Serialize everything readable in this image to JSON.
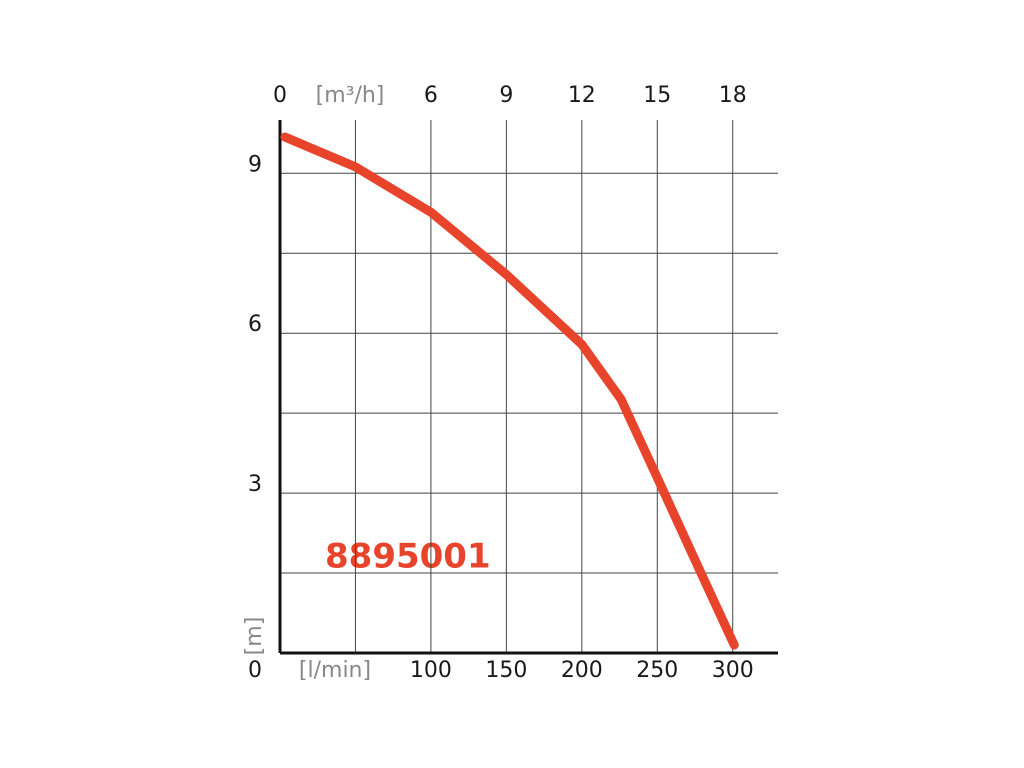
{
  "chart_data": {
    "type": "line",
    "annotation": "8895001",
    "xlabel": "[l/min]",
    "ylabel": "[m]",
    "x2label": "[m³/h]",
    "xlim": [
      0,
      330
    ],
    "xticks": [
      100,
      150,
      200,
      250,
      300
    ],
    "minor_xticks": [
      50
    ],
    "x2lim": [
      0,
      19.8
    ],
    "x2ticks": [
      0,
      6,
      9,
      12,
      15,
      18
    ],
    "ylim": [
      0,
      10
    ],
    "yticks": [
      0,
      3,
      6,
      9
    ],
    "minor_yticks": [
      1.5,
      4.5,
      7.5
    ],
    "grid": true,
    "series": [
      {
        "color": "#e8442c",
        "x": [
          3.3,
          50,
          100,
          150,
          200,
          226,
          250,
          278,
          301
        ],
        "values": [
          9.68,
          9.12,
          8.27,
          7.1,
          5.79,
          4.76,
          3.29,
          1.56,
          0.15
        ]
      }
    ]
  }
}
